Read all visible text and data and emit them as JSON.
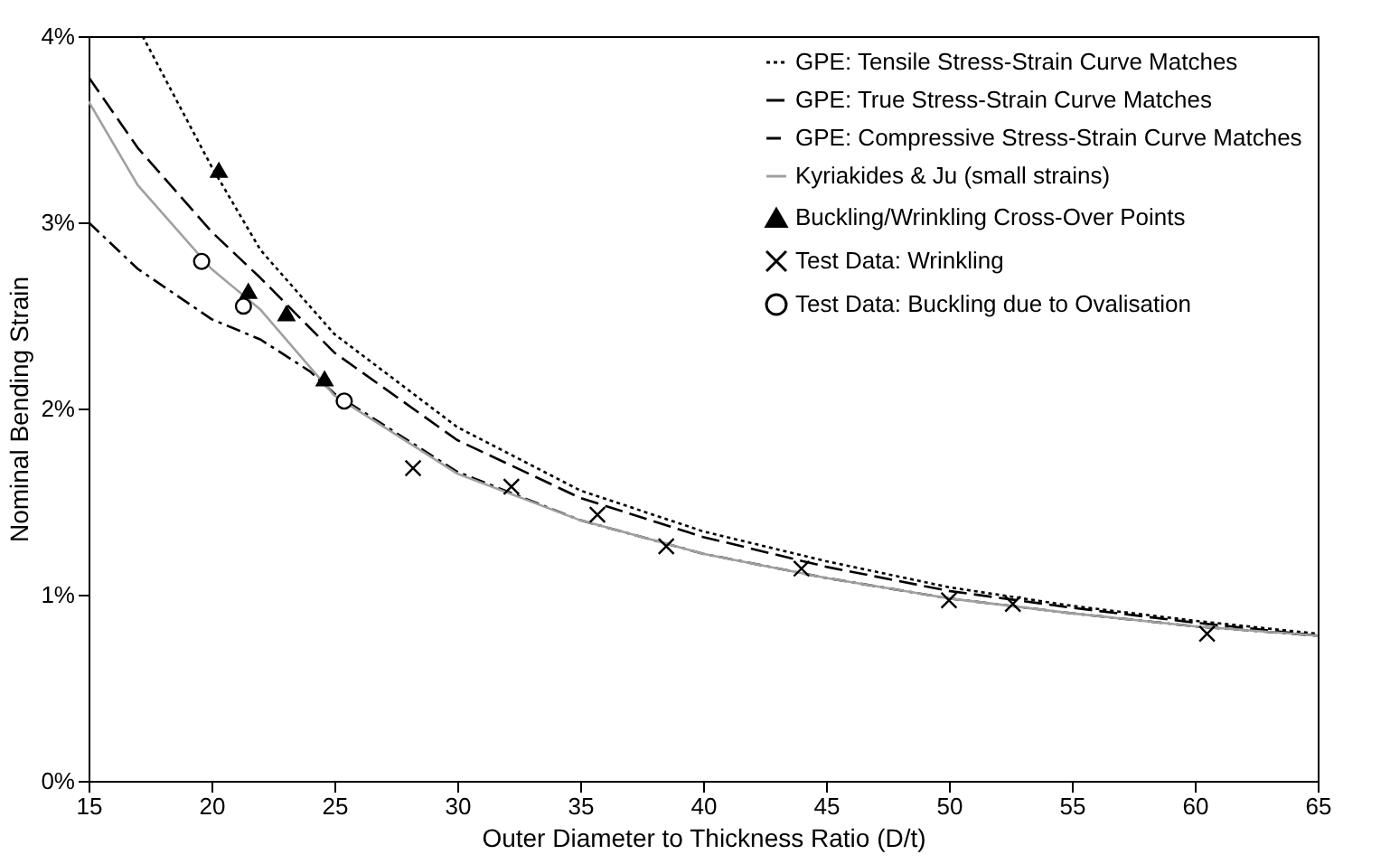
{
  "chart_data": {
    "type": "line",
    "xlabel": "Outer Diameter to Thickness Ratio  (D/t)",
    "ylabel": "Nominal Bending Strain",
    "xlim": [
      15,
      65
    ],
    "xticks": [
      15,
      20,
      25,
      30,
      35,
      40,
      45,
      50,
      55,
      60,
      65
    ],
    "ylim": [
      0,
      4
    ],
    "yticks": [
      {
        "value": 0,
        "label": "0%"
      },
      {
        "value": 1,
        "label": "1%"
      },
      {
        "value": 2,
        "label": "2%"
      },
      {
        "value": 3,
        "label": "3%"
      },
      {
        "value": 4,
        "label": "4%"
      }
    ],
    "grid": false,
    "legend": "top right",
    "series": [
      {
        "name": "GPE: Tensile Stress-Strain Curve Matches",
        "line_style": "dotted",
        "marker": "none",
        "color": "#000000",
        "x": [
          17.2,
          20,
          22,
          25,
          30,
          35,
          40,
          45,
          50,
          55,
          60,
          65
        ],
        "values": [
          4.0,
          3.3,
          2.85,
          2.4,
          1.9,
          1.56,
          1.34,
          1.18,
          1.04,
          0.94,
          0.86,
          0.79
        ]
      },
      {
        "name": "GPE: True Stress-Strain Curve Matches",
        "line_style": "dashed",
        "marker": "none",
        "color": "#000000",
        "x": [
          15,
          17,
          20,
          22,
          25,
          30,
          35,
          40,
          45,
          50,
          55,
          60,
          65
        ],
        "values": [
          3.78,
          3.4,
          2.95,
          2.7,
          2.3,
          1.83,
          1.52,
          1.31,
          1.15,
          1.02,
          0.93,
          0.85,
          0.78
        ]
      },
      {
        "name": "GPE: Compressive Stress-Strain Curve Matches",
        "line_style": "dashdot",
        "marker": "none",
        "color": "#000000",
        "x": [
          15,
          17,
          20,
          22,
          24,
          25,
          30,
          35,
          40,
          45,
          50,
          55,
          60,
          65
        ],
        "values": [
          3.0,
          2.75,
          2.48,
          2.37,
          2.2,
          2.08,
          1.66,
          1.4,
          1.22,
          1.09,
          0.98,
          0.9,
          0.83,
          0.78
        ]
      },
      {
        "name": "Kyriakides & Ju (small strains)",
        "line_style": "solid",
        "marker": "none",
        "color": "#a0a0a0",
        "x": [
          15,
          17,
          20,
          22,
          25,
          30,
          35,
          40,
          45,
          50,
          55,
          60,
          65
        ],
        "values": [
          3.65,
          3.2,
          2.75,
          2.53,
          2.07,
          1.65,
          1.4,
          1.22,
          1.09,
          0.98,
          0.9,
          0.83,
          0.78
        ]
      },
      {
        "name": "Buckling/Wrinkling Cross-Over Points",
        "type": "scatter",
        "marker": "triangle",
        "color": "#000000",
        "x": [
          20.3,
          21.5,
          23.05,
          24.6
        ],
        "values": [
          3.28,
          2.63,
          2.51,
          2.16
        ]
      },
      {
        "name": "Test Data: Wrinkling",
        "type": "scatter",
        "marker": "cross",
        "color": "#000000",
        "x": [
          28.2,
          32.2,
          35.7,
          38.5,
          44.0,
          50.0,
          52.6,
          60.5
        ],
        "values": [
          1.68,
          1.58,
          1.43,
          1.26,
          1.14,
          0.97,
          0.95,
          0.79
        ]
      },
      {
        "name": "Test Data: Buckling due to Ovalisation",
        "type": "scatter",
        "marker": "circle",
        "color": "#000000",
        "x": [
          19.6,
          21.3,
          25.4
        ],
        "values": [
          2.79,
          2.55,
          2.04
        ]
      }
    ]
  }
}
